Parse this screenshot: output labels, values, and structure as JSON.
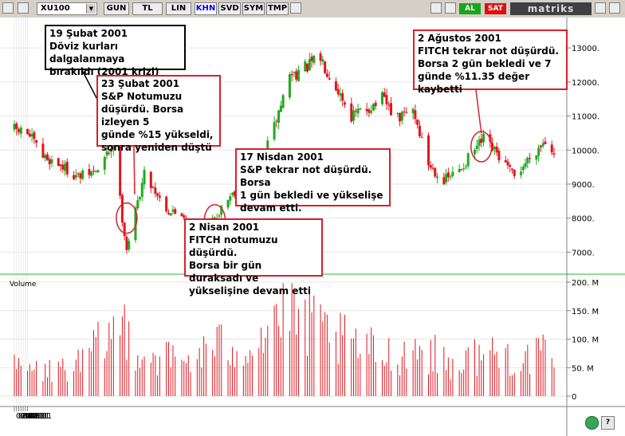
{
  "toolbar": {
    "symbol": "XU100",
    "buttons": [
      {
        "label": "GUN",
        "active": false
      },
      {
        "label": "TL",
        "active": false
      },
      {
        "label": "LIN",
        "active": false
      },
      {
        "label": "KHN",
        "active": true
      },
      {
        "label": "SVD",
        "active": false
      },
      {
        "label": "SYM",
        "active": false
      },
      {
        "label": "TMP",
        "active": false
      }
    ],
    "al_label": "AL",
    "sat_label": "SAT",
    "brand": "matriks",
    "colors": {
      "al": "#1aa51a",
      "sat": "#e01010",
      "up": "#1faa1f",
      "down": "#e0161e",
      "volume": "#e0161e",
      "annotation_border": "#d8202a"
    }
  },
  "chart_data": [
    {
      "type": "candlestick",
      "x_tick_labels": [
        "02.01",
        "03.01",
        "04.01",
        "05.01",
        "06.01",
        "07.01",
        "08.01"
      ],
      "y_tick_labels": [
        "7000.",
        "8000.",
        "9000.",
        "10000.",
        "11000.",
        "12000.",
        "13000."
      ],
      "ylim": [
        6400,
        13800
      ],
      "grid": true,
      "segments": [
        {
          "date": "2001-01-02",
          "value": 10600
        },
        {
          "date": "2001-01-08",
          "value": 10500
        },
        {
          "date": "2001-01-15",
          "value": 9800
        },
        {
          "date": "2001-01-22",
          "value": 9600
        },
        {
          "date": "2001-01-31",
          "value": 9200
        },
        {
          "date": "2001-02-09",
          "value": 9400
        },
        {
          "date": "2001-02-16",
          "value": 10200
        },
        {
          "date": "2001-02-20",
          "value": 8000
        },
        {
          "date": "2001-02-22",
          "value": 7100
        },
        {
          "date": "2001-02-26",
          "value": 8200
        },
        {
          "date": "2001-03-02",
          "value": 9300
        },
        {
          "date": "2001-03-07",
          "value": 8800
        },
        {
          "date": "2001-03-13",
          "value": 8200
        },
        {
          "date": "2001-03-20",
          "value": 8100
        },
        {
          "date": "2001-03-27",
          "value": 7500
        },
        {
          "date": "2001-04-02",
          "value": 7900
        },
        {
          "date": "2001-04-09",
          "value": 8600
        },
        {
          "date": "2001-04-17",
          "value": 9100
        },
        {
          "date": "2001-04-24",
          "value": 9600
        },
        {
          "date": "2001-04-30",
          "value": 10700
        },
        {
          "date": "2001-05-07",
          "value": 12200
        },
        {
          "date": "2001-05-14",
          "value": 12400
        },
        {
          "date": "2001-05-21",
          "value": 12700
        },
        {
          "date": "2001-05-28",
          "value": 11900
        },
        {
          "date": "2001-06-04",
          "value": 11000
        },
        {
          "date": "2001-06-11",
          "value": 11200
        },
        {
          "date": "2001-06-18",
          "value": 11500
        },
        {
          "date": "2001-06-25",
          "value": 10900
        },
        {
          "date": "2001-07-02",
          "value": 11200
        },
        {
          "date": "2001-07-09",
          "value": 9600
        },
        {
          "date": "2001-07-16",
          "value": 9100
        },
        {
          "date": "2001-07-23",
          "value": 9400
        },
        {
          "date": "2001-07-30",
          "value": 10000
        },
        {
          "date": "2001-08-03",
          "value": 10300
        },
        {
          "date": "2001-08-10",
          "value": 9800
        },
        {
          "date": "2001-08-17",
          "value": 9200
        },
        {
          "date": "2001-08-24",
          "value": 9800
        },
        {
          "date": "2001-08-31",
          "value": 10300
        },
        {
          "date": "2001-09-04",
          "value": 10000
        }
      ]
    },
    {
      "type": "bar",
      "title": "Volume",
      "y_tick_labels": [
        "0",
        "50. M",
        "100. M",
        "150. M",
        "200. M"
      ],
      "ylim": [
        0,
        200
      ],
      "y_unit": "M",
      "levels": [
        {
          "date": "2001-01-02",
          "value": 60
        },
        {
          "date": "2001-01-15",
          "value": 50
        },
        {
          "date": "2001-02-01",
          "value": 65
        },
        {
          "date": "2001-02-20",
          "value": 150
        },
        {
          "date": "2001-03-01",
          "value": 90
        },
        {
          "date": "2001-03-20",
          "value": 70
        },
        {
          "date": "2001-04-02",
          "value": 100
        },
        {
          "date": "2001-04-20",
          "value": 110
        },
        {
          "date": "2001-05-02",
          "value": 170
        },
        {
          "date": "2001-05-15",
          "value": 150
        },
        {
          "date": "2001-06-01",
          "value": 110
        },
        {
          "date": "2001-06-20",
          "value": 85
        },
        {
          "date": "2001-07-05",
          "value": 100
        },
        {
          "date": "2001-07-20",
          "value": 65
        },
        {
          "date": "2001-08-03",
          "value": 90
        },
        {
          "date": "2001-08-20",
          "value": 80
        },
        {
          "date": "2001-09-04",
          "value": 85
        }
      ]
    }
  ],
  "annotations": [
    {
      "id": "ann-feb19",
      "text": "19 Şubat 2001\nDöviz kurları dalgalanmaya\nbırakıldı (2001 krizi)",
      "style": "black"
    },
    {
      "id": "ann-feb23",
      "text": "23 Şubat 2001\nS&P Notumuzu\ndüşürdü. Borsa izleyen 5\ngünde %15 yükseldi,\nsonra yeniden düştü",
      "style": "red"
    },
    {
      "id": "ann-apr17",
      "text": "17 Nisdan 2001\nS&P tekrar not düşürdü. Borsa\n1 gün bekledi ve yükselişe\ndevam etti.",
      "style": "red"
    },
    {
      "id": "ann-apr2",
      "text": "2 Nisan 2001\nFITCH notumuzu düşürdü.\nBorsa bir gün duraksadı ve\nyükselişine devam etti",
      "style": "red"
    },
    {
      "id": "ann-aug2",
      "text": "2 Ağustos 2001\nFITCH tekrar not düşürdü.\nBorsa 2 gün bekledi ve 7\ngünde %11.35 değer kaybetti",
      "style": "red"
    }
  ]
}
